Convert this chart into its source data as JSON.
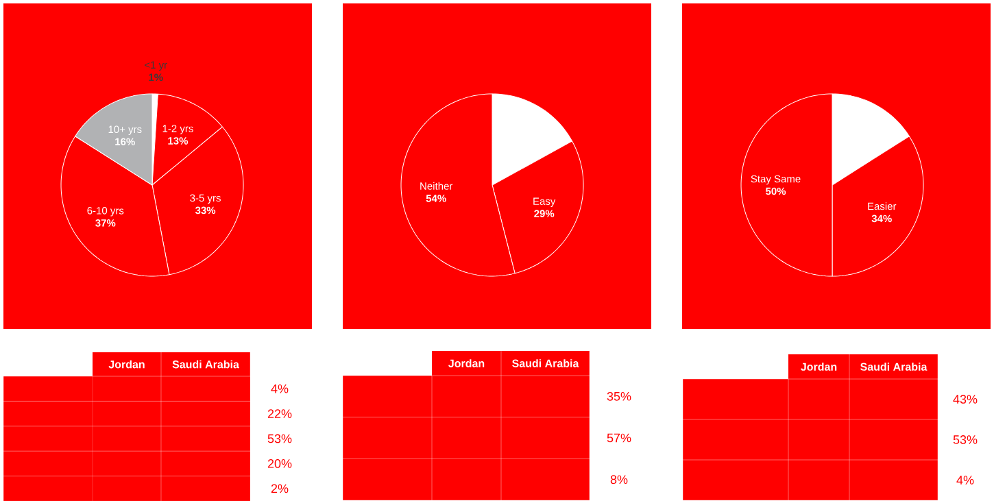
{
  "chart_data": [
    {
      "type": "pie",
      "categories": [
        "<1 yr",
        "1-2 yrs",
        "3-5 yrs",
        "6-10 yrs",
        "10+ yrs"
      ],
      "values": [
        1,
        13,
        33,
        37,
        16
      ],
      "value_labels": [
        "1%",
        "13%",
        "33%",
        "37%",
        "16%"
      ],
      "colors": [
        "#ffffff",
        "#ff0000",
        "#ff0000",
        "#ff0000",
        "#b1b2b4"
      ]
    },
    {
      "type": "pie",
      "categories": [
        null,
        "Easy",
        "Neither"
      ],
      "values": [
        17,
        29,
        54
      ],
      "value_labels": [
        null,
        "29%",
        "54%"
      ],
      "colors": [
        "#ffffff",
        "#ff0000",
        "#ff0000"
      ]
    },
    {
      "type": "pie",
      "categories": [
        null,
        "Easier",
        "Stay Same"
      ],
      "values": [
        16,
        34,
        50
      ],
      "value_labels": [
        null,
        "34%",
        "50%"
      ],
      "colors": [
        "#ffffff",
        "#ff0000",
        "#ff0000"
      ]
    },
    {
      "type": "other",
      "categories": [
        "Jordan",
        "Saudi Arabia"
      ],
      "annotations": [
        "4%",
        "22%",
        "53%",
        "20%",
        "2%"
      ]
    },
    {
      "type": "other",
      "categories": [
        "Jordan",
        "Saudi Arabia"
      ],
      "annotations": [
        "35%",
        "57%",
        "8%"
      ]
    },
    {
      "type": "other",
      "categories": [
        "Jordan",
        "Saudi Arabia"
      ],
      "annotations": [
        "43%",
        "53%",
        "4%"
      ]
    }
  ]
}
